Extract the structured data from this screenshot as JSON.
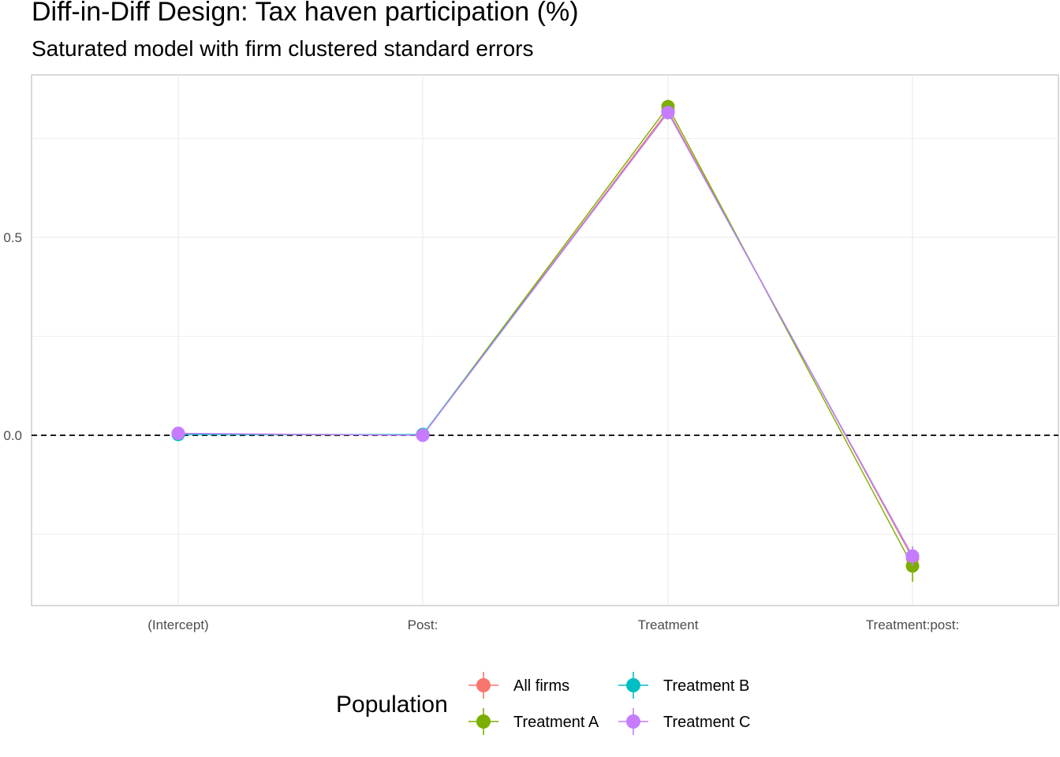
{
  "chart_data": {
    "type": "line",
    "title": "Diff-in-Diff Design: Tax haven participation (%)",
    "subtitle": "Saturated model with firm clustered standard errors",
    "xlabel": "",
    "ylabel": "",
    "categories": [
      "(Intercept)",
      "Post:",
      "Treatment",
      "Treatment:post:"
    ],
    "y_ticks": [
      0.0,
      0.5
    ],
    "y_tick_labels": [
      "0.0",
      "0.5"
    ],
    "ylim": [
      -0.43,
      0.91
    ],
    "grid": true,
    "reference_line": {
      "y": 0,
      "style": "dashed"
    },
    "legend": {
      "title": "Population",
      "position": "bottom"
    },
    "series": [
      {
        "name": "All firms",
        "color": "#F8766D",
        "values": [
          0.003,
          0.001,
          0.82,
          -0.31
        ],
        "ci_low": [
          0.0,
          -0.002,
          0.81,
          -0.33
        ],
        "ci_high": [
          0.006,
          0.004,
          0.83,
          -0.29
        ]
      },
      {
        "name": "Treatment A",
        "color": "#7CAE00",
        "values": [
          0.004,
          0.001,
          0.83,
          -0.33
        ],
        "ci_low": [
          0.001,
          -0.002,
          0.815,
          -0.37
        ],
        "ci_high": [
          0.007,
          0.004,
          0.845,
          -0.3
        ]
      },
      {
        "name": "Treatment B",
        "color": "#00BFC4",
        "values": [
          0.002,
          0.002,
          0.815,
          -0.305
        ],
        "ci_low": [
          -0.001,
          -0.001,
          0.8,
          -0.32
        ],
        "ci_high": [
          0.005,
          0.005,
          0.83,
          -0.29
        ]
      },
      {
        "name": "Treatment C",
        "color": "#C77CFF",
        "values": [
          0.005,
          0.0,
          0.815,
          -0.305
        ],
        "ci_low": [
          0.002,
          -0.003,
          0.8,
          -0.33
        ],
        "ci_high": [
          0.008,
          0.003,
          0.83,
          -0.28
        ]
      }
    ]
  }
}
